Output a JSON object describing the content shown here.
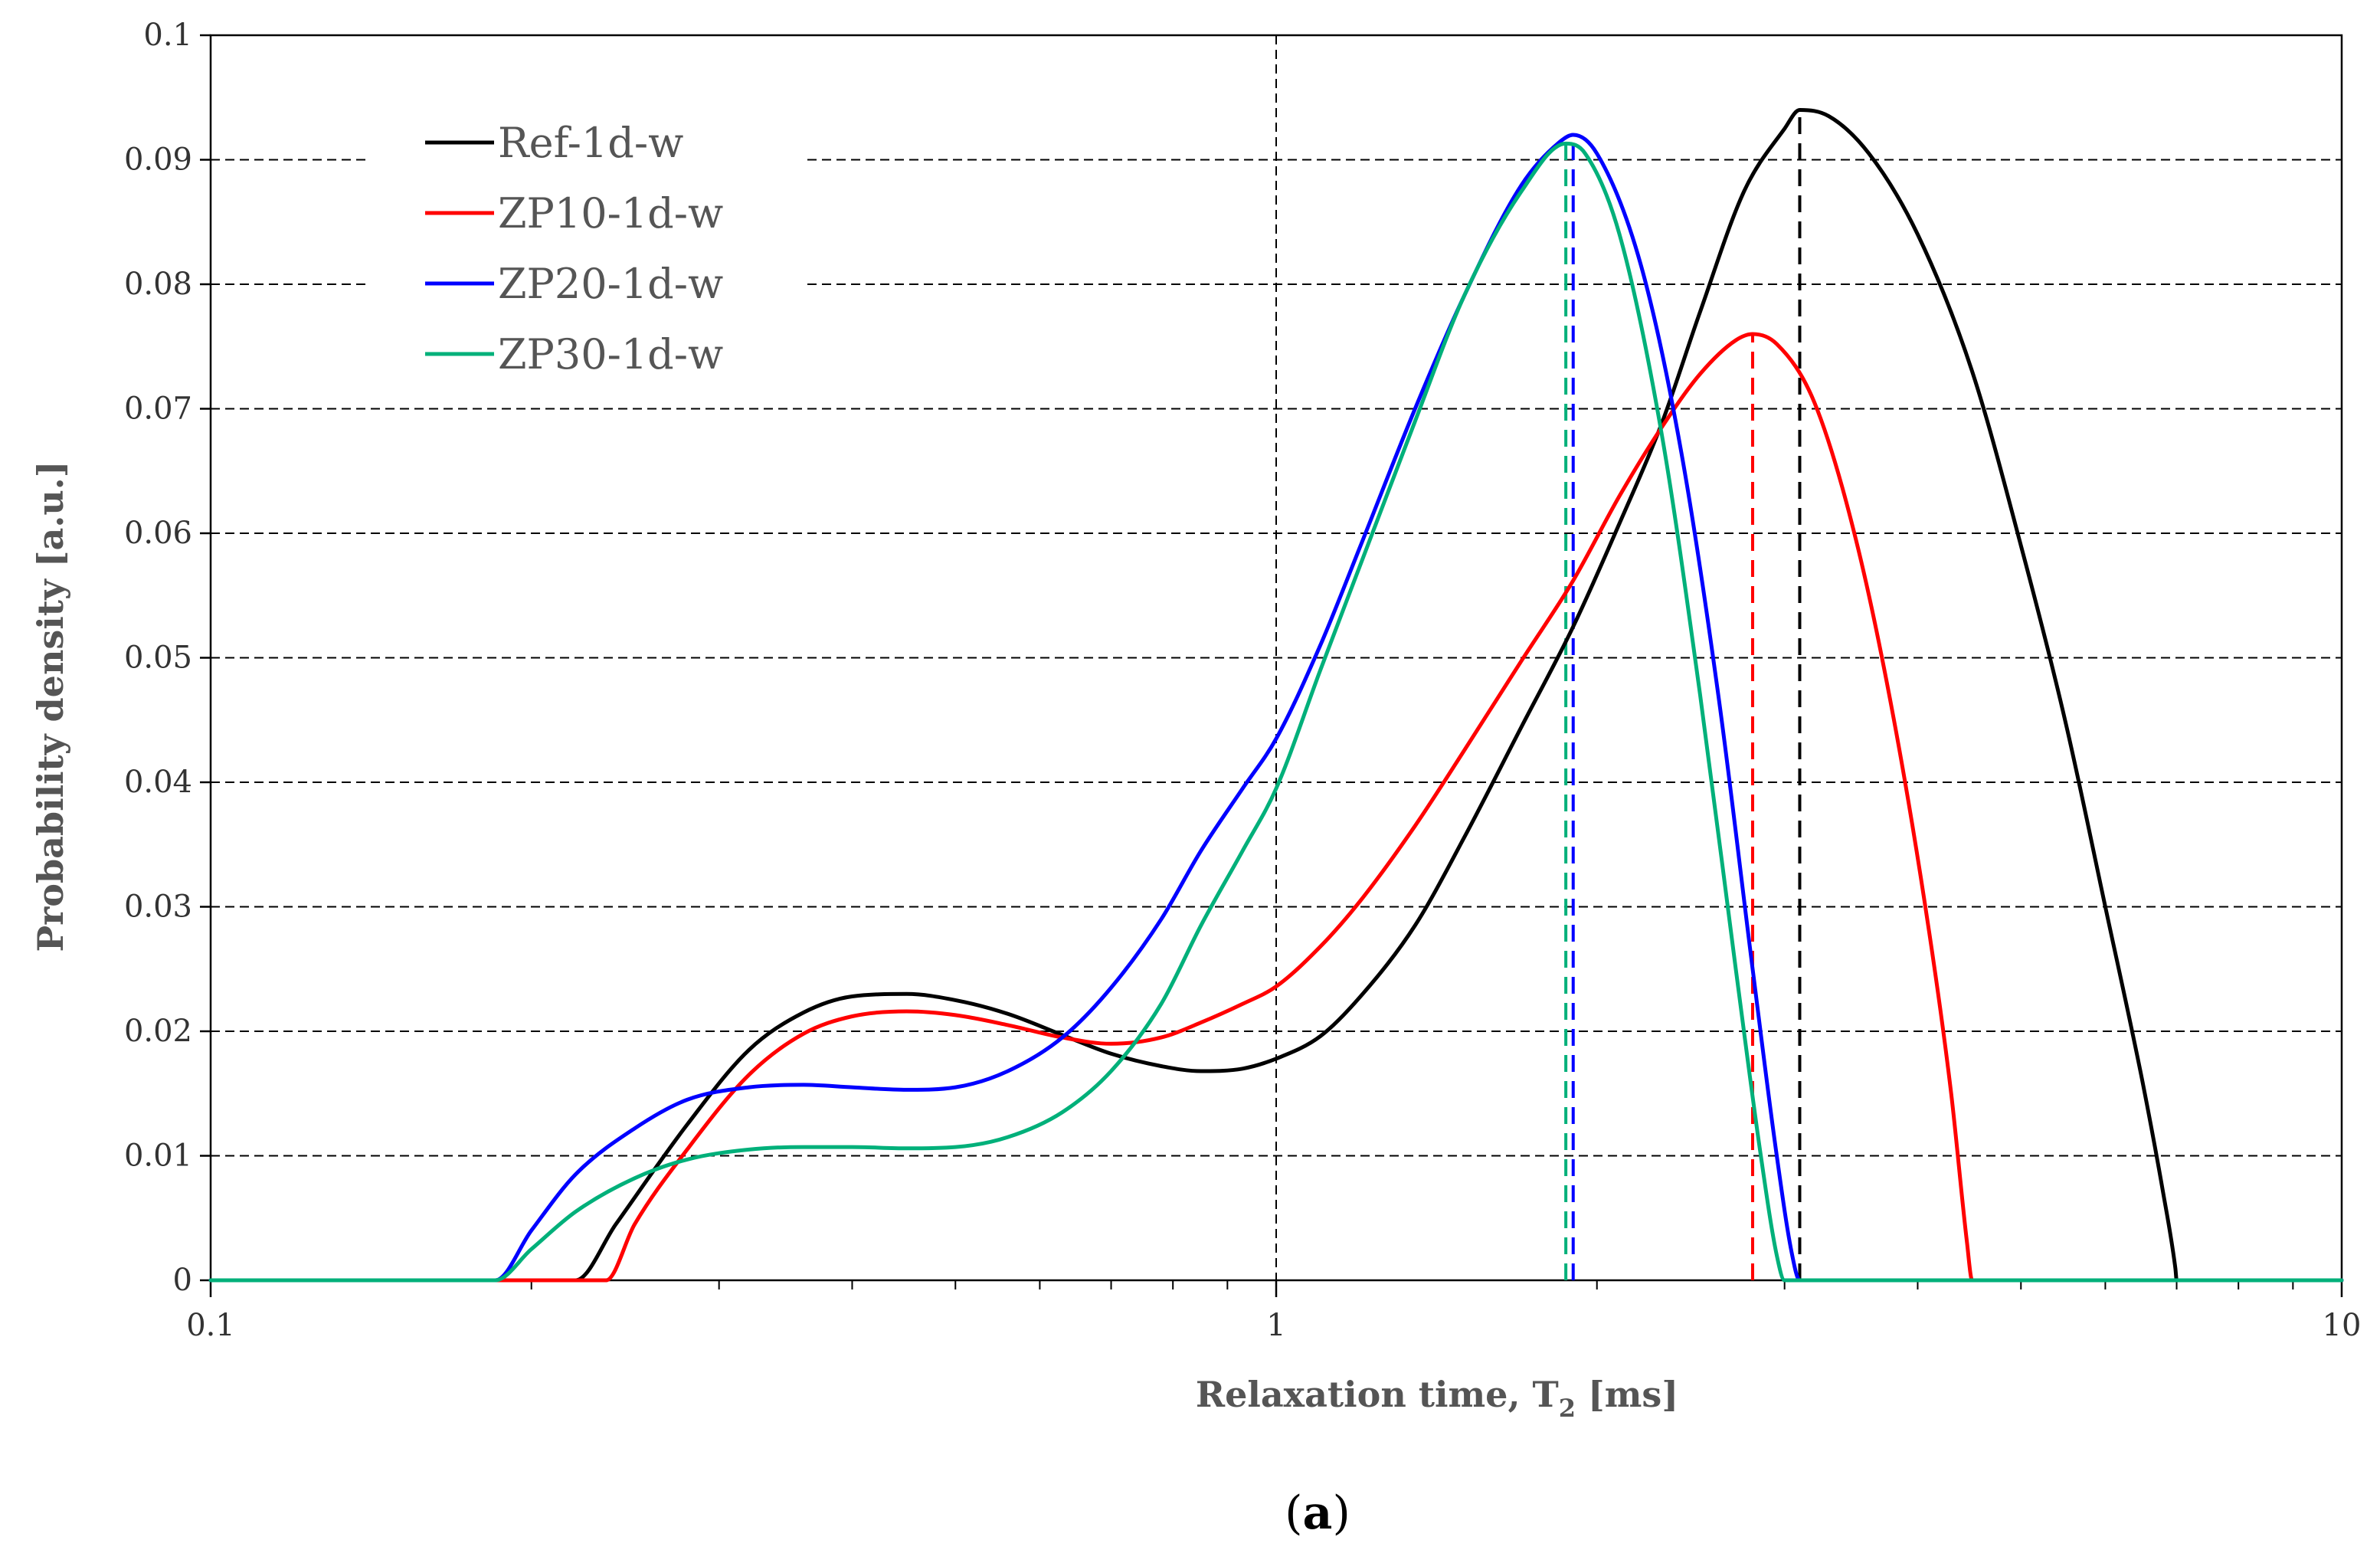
{
  "chart_data": {
    "type": "line",
    "xscale": "log",
    "xlim": [
      0.1,
      10
    ],
    "ylim": [
      0,
      0.1
    ],
    "xticks": [
      "0.1",
      "1",
      "10"
    ],
    "yticks": [
      "0",
      "0.01",
      "0.02",
      "0.03",
      "0.04",
      "0.05",
      "0.06",
      "0.07",
      "0.08",
      "0.09",
      "0.1"
    ],
    "xlabel_main": "Relaxation time, T",
    "xlabel_sub": "2",
    "xlabel_unit": " [ms]",
    "ylabel": "Probability density [a.u.]",
    "panel_label": "(a)",
    "panel_label_letter": "a",
    "legend_position": "top-left",
    "series": [
      {
        "name": "Ref-1d-w",
        "color": "#000000",
        "peak_x": 3.1,
        "x": [
          0.1,
          0.2,
          0.22,
          0.24,
          0.28,
          0.32,
          0.36,
          0.4,
          0.45,
          0.5,
          0.56,
          0.63,
          0.7,
          0.78,
          0.85,
          0.93,
          1.0,
          1.1,
          1.2,
          1.35,
          1.5,
          1.7,
          1.9,
          2.1,
          2.3,
          2.5,
          2.75,
          3.0,
          3.1,
          3.3,
          3.6,
          4.0,
          4.5,
          5.0,
          5.5,
          6.0,
          6.5,
          6.8,
          6.98,
          7.0,
          10
        ],
        "y": [
          0,
          0,
          0,
          0.0045,
          0.0125,
          0.0185,
          0.0215,
          0.0228,
          0.023,
          0.0225,
          0.0214,
          0.0197,
          0.0182,
          0.0172,
          0.0168,
          0.017,
          0.0178,
          0.0196,
          0.0228,
          0.0285,
          0.0355,
          0.0445,
          0.0525,
          0.0608,
          0.0688,
          0.0778,
          0.0875,
          0.0925,
          0.094,
          0.0935,
          0.0905,
          0.084,
          0.073,
          0.059,
          0.045,
          0.03,
          0.016,
          0.007,
          0.001,
          0,
          0
        ]
      },
      {
        "name": "ZP10-1d-w",
        "color": "#ff0000",
        "peak_x": 2.8,
        "x": [
          0.1,
          0.2,
          0.235,
          0.25,
          0.28,
          0.32,
          0.36,
          0.4,
          0.45,
          0.5,
          0.56,
          0.63,
          0.7,
          0.78,
          0.85,
          0.93,
          1.0,
          1.1,
          1.2,
          1.35,
          1.5,
          1.7,
          1.9,
          2.1,
          2.3,
          2.5,
          2.7,
          2.8,
          2.95,
          3.2,
          3.5,
          3.8,
          4.1,
          4.3,
          4.45,
          4.5,
          10
        ],
        "y": [
          0,
          0,
          0,
          0.0045,
          0.0105,
          0.0165,
          0.0198,
          0.0212,
          0.0216,
          0.0213,
          0.0205,
          0.0195,
          0.019,
          0.0195,
          0.0207,
          0.0222,
          0.0236,
          0.0268,
          0.0305,
          0.0365,
          0.0425,
          0.0498,
          0.0562,
          0.063,
          0.0685,
          0.0728,
          0.0755,
          0.076,
          0.0752,
          0.0705,
          0.0595,
          0.045,
          0.028,
          0.015,
          0.003,
          0,
          0
        ]
      },
      {
        "name": "ZP20-1d-w",
        "color": "#0000ff",
        "peak_x": 1.9,
        "x": [
          0.1,
          0.185,
          0.2,
          0.22,
          0.25,
          0.28,
          0.32,
          0.36,
          0.4,
          0.45,
          0.5,
          0.56,
          0.63,
          0.7,
          0.78,
          0.85,
          0.93,
          1.0,
          1.1,
          1.2,
          1.35,
          1.5,
          1.7,
          1.85,
          1.9,
          2.0,
          2.2,
          2.4,
          2.6,
          2.8,
          2.95,
          3.05,
          3.1,
          10
        ],
        "y": [
          0,
          0,
          0.004,
          0.0085,
          0.0122,
          0.0145,
          0.0155,
          0.0157,
          0.0155,
          0.0153,
          0.0155,
          0.0168,
          0.0195,
          0.0235,
          0.029,
          0.0345,
          0.0395,
          0.0435,
          0.051,
          0.059,
          0.07,
          0.079,
          0.088,
          0.0915,
          0.092,
          0.0905,
          0.0815,
          0.0665,
          0.047,
          0.025,
          0.01,
          0.002,
          0,
          0
        ]
      },
      {
        "name": "ZP30-1d-w",
        "color": "#00b07a",
        "peak_x": 1.87,
        "x": [
          0.1,
          0.185,
          0.2,
          0.22,
          0.25,
          0.28,
          0.32,
          0.36,
          0.4,
          0.45,
          0.5,
          0.56,
          0.63,
          0.7,
          0.78,
          0.85,
          0.93,
          1.0,
          1.1,
          1.2,
          1.35,
          1.5,
          1.7,
          1.87,
          1.95,
          2.1,
          2.3,
          2.5,
          2.7,
          2.85,
          2.95,
          3.0,
          10
        ],
        "y": [
          0,
          0,
          0.0025,
          0.0055,
          0.0082,
          0.0097,
          0.0105,
          0.0107,
          0.0107,
          0.0106,
          0.0107,
          0.0115,
          0.0135,
          0.0168,
          0.0222,
          0.0285,
          0.0345,
          0.0395,
          0.049,
          0.0575,
          0.069,
          0.079,
          0.0875,
          0.0913,
          0.0905,
          0.084,
          0.068,
          0.047,
          0.025,
          0.01,
          0.002,
          0,
          0
        ]
      }
    ]
  }
}
